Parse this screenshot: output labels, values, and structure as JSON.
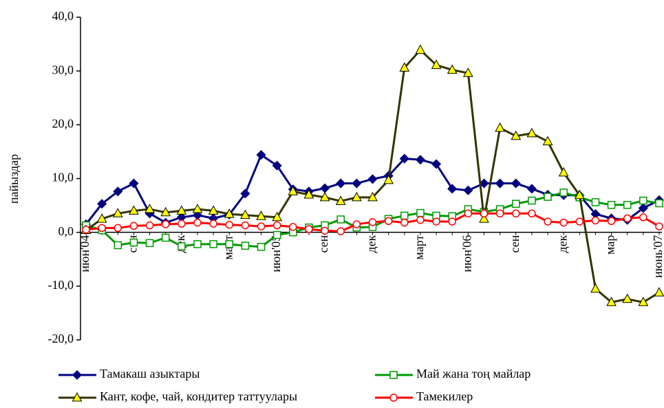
{
  "chart_data": {
    "type": "line",
    "y_label": "пайыздар",
    "categories": [
      "июн'04",
      null,
      null,
      "сен",
      null,
      null,
      "дек",
      null,
      null,
      "март",
      null,
      null,
      "июн'05",
      null,
      null,
      "сен",
      null,
      null,
      "дек",
      null,
      null,
      "март",
      null,
      null,
      "июн'06",
      null,
      null,
      "сен",
      null,
      null,
      "дек",
      null,
      null,
      "мар",
      null,
      null,
      "июнь'07"
    ],
    "ylim": [
      -20,
      40
    ],
    "yticks": [
      {
        "value": -20,
        "label": "-20,0"
      },
      {
        "value": -10,
        "label": "-10,0"
      },
      {
        "value": 0,
        "label": "0,0"
      },
      {
        "value": 10,
        "label": "10,0"
      },
      {
        "value": 20,
        "label": "20,0"
      },
      {
        "value": 30,
        "label": "30,0"
      },
      {
        "value": 40,
        "label": "40,0"
      }
    ],
    "grid": false,
    "legend": "bottom",
    "series": [
      {
        "name": "Тамакаш азыктары",
        "color": "#000080",
        "marker": "diamond",
        "marker_fill": "#000080",
        "values": [
          1.5,
          5.3,
          7.6,
          9.1,
          3.5,
          1.8,
          2.8,
          3.2,
          2.6,
          3.3,
          7.2,
          14.4,
          12.4,
          8.0,
          7.6,
          8.2,
          9.1,
          9.1,
          9.9,
          10.5,
          13.7,
          13.5,
          12.7,
          8.1,
          7.8,
          9.1,
          9.1,
          9.1,
          8.1,
          7.0,
          6.9,
          6.9,
          3.4,
          2.6,
          2.3,
          4.5,
          6.0
        ]
      },
      {
        "name": "Май жана тоң майлар",
        "color": "#009900",
        "marker": "square",
        "marker_fill": "#ffffff",
        "values": [
          1.3,
          0.4,
          -2.4,
          -1.9,
          -2.0,
          -1.0,
          -2.6,
          -2.2,
          -2.2,
          -2.2,
          -2.5,
          -2.7,
          -0.5,
          0.0,
          0.9,
          1.3,
          2.4,
          0.9,
          1.0,
          2.5,
          3.1,
          3.6,
          3.1,
          3.0,
          4.3,
          3.8,
          4.3,
          5.3,
          5.9,
          6.6,
          7.4,
          6.5,
          5.6,
          5.1,
          5.1,
          5.9,
          5.4
        ]
      },
      {
        "name": "Кант, кофе, чай, кондитер таттуулары",
        "color": "#333300",
        "marker": "triangle",
        "marker_fill": "#ffff00",
        "values": [
          0.4,
          2.5,
          3.5,
          4.0,
          4.3,
          3.7,
          4.0,
          4.3,
          4.0,
          3.4,
          3.2,
          3.0,
          2.8,
          7.6,
          7.0,
          6.5,
          5.8,
          6.5,
          6.5,
          9.7,
          30.6,
          33.9,
          31.1,
          30.2,
          29.6,
          2.5,
          19.4,
          17.9,
          18.4,
          16.9,
          11.1,
          6.9,
          -10.5,
          -13.0,
          -12.4,
          -13.0,
          -11.2
        ]
      },
      {
        "name": "Тамекилер",
        "color": "#ff0000",
        "marker": "circle",
        "marker_fill": "#ffffff",
        "values": [
          0.5,
          0.8,
          0.8,
          1.2,
          1.3,
          1.5,
          1.6,
          1.8,
          1.6,
          1.4,
          1.3,
          1.1,
          1.3,
          1.0,
          0.6,
          0.3,
          0.2,
          1.5,
          1.9,
          2.1,
          1.8,
          2.3,
          2.0,
          2.0,
          3.5,
          3.5,
          3.5,
          3.5,
          3.5,
          2.0,
          1.8,
          2.0,
          2.2,
          2.1,
          2.6,
          2.8,
          1.1
        ]
      }
    ]
  }
}
